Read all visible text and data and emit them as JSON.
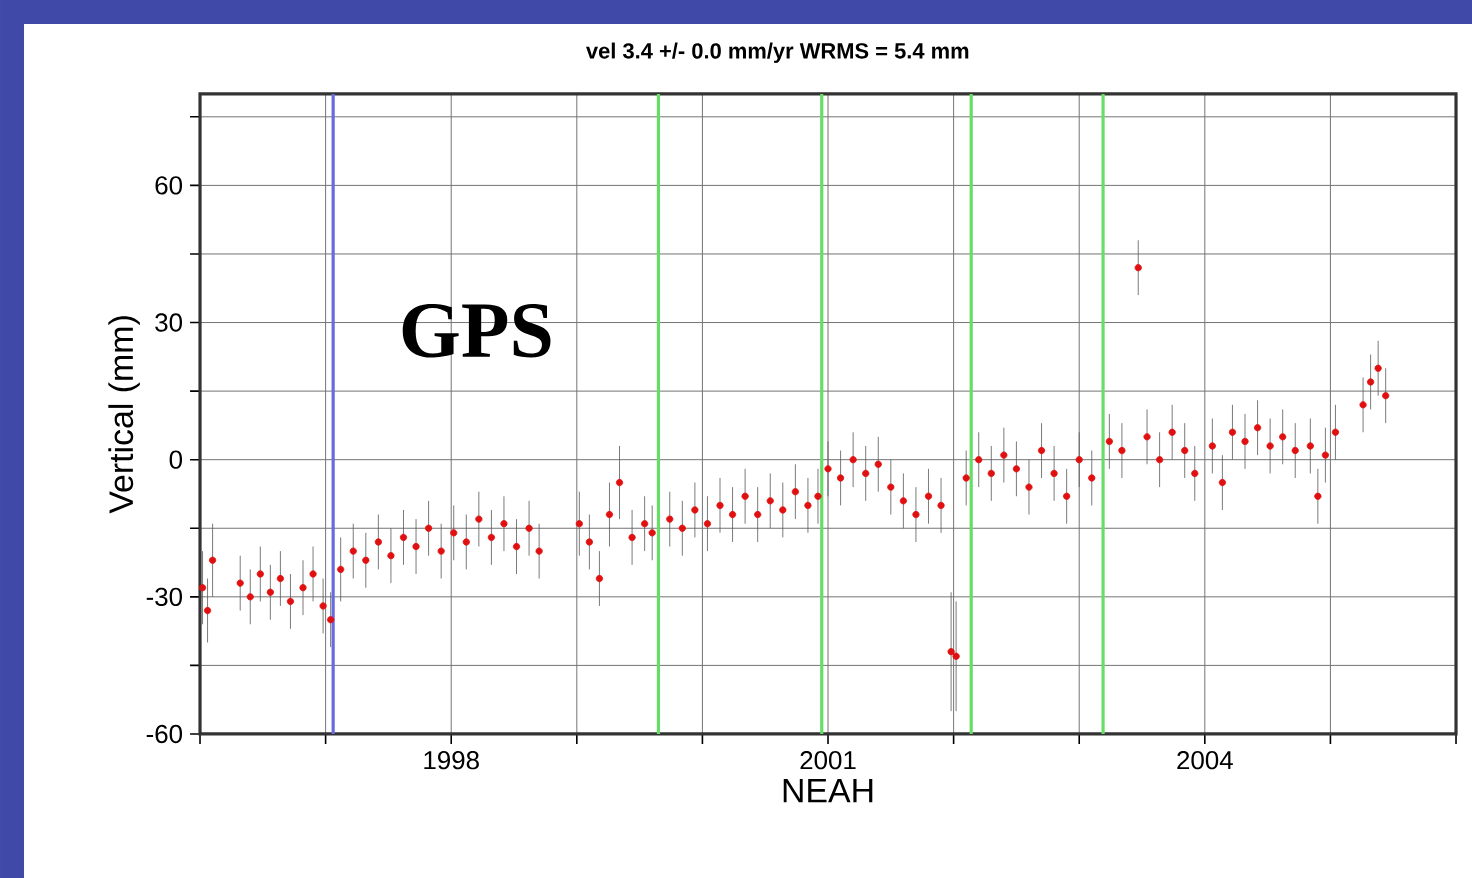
{
  "chart_data": {
    "type": "scatter",
    "title": "vel  3.4 +/- 0.0 mm/yr WRMS = 5.4 mm",
    "xlabel": "NEAH",
    "ylabel": "Vertical (mm)",
    "annotations": [
      "GPS"
    ],
    "xlim": [
      1996,
      2006
    ],
    "ylim": [
      -60,
      80
    ],
    "xticks": [
      {
        "value": 1996,
        "label": null
      },
      {
        "value": 1997,
        "label": null
      },
      1998,
      {
        "value": 1999,
        "label": null
      },
      {
        "value": 2000,
        "label": null
      },
      2001,
      {
        "value": 2002,
        "label": null
      },
      {
        "value": 2003,
        "label": null
      },
      2004,
      {
        "value": 2005,
        "label": null
      },
      {
        "value": 2006,
        "label": null
      }
    ],
    "yticks": [
      -60,
      {
        "value": -45,
        "label": null
      },
      -30,
      {
        "value": -15,
        "label": null
      },
      0,
      {
        "value": 15,
        "label": null
      },
      30,
      {
        "value": 45,
        "label": null
      },
      60,
      {
        "value": 75,
        "label": null
      }
    ],
    "grid": true,
    "marker": "circle",
    "ref_lines": [
      {
        "axis": "x",
        "value": 1997.06,
        "color": "#6a6ae0"
      },
      {
        "axis": "x",
        "value": 1999.65,
        "color": "#66dd66"
      },
      {
        "axis": "x",
        "value": 2000.95,
        "color": "#66dd66"
      },
      {
        "axis": "x",
        "value": 2002.14,
        "color": "#66dd66"
      },
      {
        "axis": "x",
        "value": 2003.19,
        "color": "#66dd66"
      }
    ],
    "series": [
      {
        "color": "#e01010",
        "x": [
          1996.02,
          1996.06,
          1996.1,
          1996.32,
          1996.4,
          1996.48,
          1996.56,
          1996.64,
          1996.72,
          1996.82,
          1996.9,
          1996.98,
          1997.04,
          1997.12,
          1997.22,
          1997.32,
          1997.42,
          1997.52,
          1997.62,
          1997.72,
          1997.82,
          1997.92,
          1998.02,
          1998.12,
          1998.22,
          1998.32,
          1998.42,
          1998.52,
          1998.62,
          1998.7,
          1999.02,
          1999.1,
          1999.18,
          1999.26,
          1999.34,
          1999.44,
          1999.54,
          1999.6,
          1999.74,
          1999.84,
          1999.94,
          2000.04,
          2000.14,
          2000.24,
          2000.34,
          2000.44,
          2000.54,
          2000.64,
          2000.74,
          2000.84,
          2000.92,
          2001.0,
          2001.1,
          2001.2,
          2001.3,
          2001.4,
          2001.5,
          2001.6,
          2001.7,
          2001.8,
          2001.9,
          2001.98,
          2002.02,
          2002.1,
          2002.2,
          2002.3,
          2002.4,
          2002.5,
          2002.6,
          2002.7,
          2002.8,
          2002.9,
          2003.0,
          2003.1,
          2003.24,
          2003.34,
          2003.47,
          2003.54,
          2003.64,
          2003.74,
          2003.84,
          2003.92,
          2004.06,
          2004.14,
          2004.22,
          2004.32,
          2004.42,
          2004.52,
          2004.62,
          2004.72,
          2004.84,
          2004.9,
          2004.96,
          2005.04,
          2005.26,
          2005.32,
          2005.38,
          2005.44
        ],
        "values": [
          -28,
          -33,
          -22,
          -27,
          -30,
          -25,
          -29,
          -26,
          -31,
          -28,
          -25,
          -32,
          -35,
          -24,
          -20,
          -22,
          -18,
          -21,
          -17,
          -19,
          -15,
          -20,
          -16,
          -18,
          -13,
          -17,
          -14,
          -19,
          -15,
          -20,
          -14,
          -18,
          -26,
          -12,
          -5,
          -17,
          -14,
          -16,
          -13,
          -15,
          -11,
          -14,
          -10,
          -12,
          -8,
          -12,
          -9,
          -11,
          -7,
          -10,
          -8,
          -2,
          -4,
          0,
          -3,
          -1,
          -6,
          -9,
          -12,
          -8,
          -10,
          -42,
          -43,
          -4,
          0,
          -3,
          1,
          -2,
          -6,
          2,
          -3,
          -8,
          0,
          -4,
          4,
          2,
          42,
          5,
          0,
          6,
          2,
          -3,
          3,
          -5,
          6,
          4,
          7,
          3,
          5,
          2,
          3,
          -8,
          1,
          6,
          12,
          17,
          20,
          14
        ],
        "errors": [
          8,
          7,
          8,
          6,
          6,
          6,
          6,
          6,
          6,
          6,
          6,
          6,
          6,
          7,
          6,
          6,
          6,
          6,
          6,
          6,
          6,
          6,
          6,
          6,
          6,
          6,
          6,
          6,
          6,
          6,
          7,
          6,
          6,
          7,
          8,
          6,
          6,
          6,
          6,
          6,
          6,
          6,
          6,
          6,
          6,
          6,
          6,
          6,
          6,
          6,
          6,
          6,
          6,
          6,
          6,
          6,
          6,
          6,
          6,
          6,
          6,
          13,
          12,
          6,
          6,
          6,
          6,
          6,
          6,
          6,
          6,
          6,
          6,
          6,
          6,
          6,
          6,
          6,
          6,
          6,
          6,
          6,
          6,
          6,
          6,
          6,
          6,
          6,
          6,
          6,
          6,
          6,
          6,
          6,
          6,
          6,
          6,
          6
        ]
      }
    ]
  }
}
